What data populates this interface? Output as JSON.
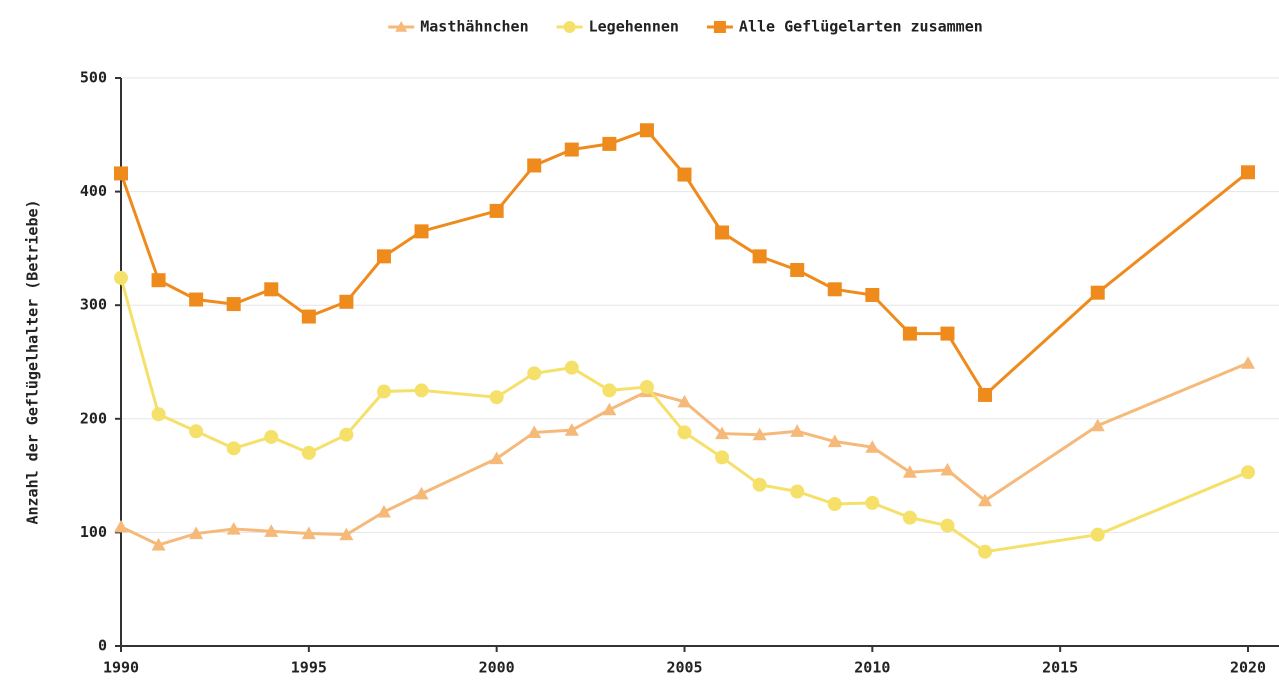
{
  "chart_data": {
    "type": "line",
    "y_label": "Anzahl der Geflügelhalter (Betriebe)",
    "x": [
      1990,
      1991,
      1992,
      1993,
      1994,
      1995,
      1996,
      1997,
      1998,
      2000,
      2001,
      2002,
      2003,
      2004,
      2005,
      2006,
      2007,
      2008,
      2009,
      2010,
      2011,
      2012,
      2013,
      2016,
      2020
    ],
    "series": [
      {
        "name": "Masthähnchen",
        "color": "#f5b97a",
        "marker": "triangle",
        "values": [
          105,
          89,
          99,
          103,
          101,
          99,
          98,
          118,
          134,
          165,
          188,
          190,
          208,
          224,
          215,
          187,
          186,
          189,
          180,
          175,
          153,
          155,
          128,
          194,
          249
        ]
      },
      {
        "name": "Legehennen",
        "color": "#f5e06a",
        "marker": "circle",
        "values": [
          324,
          204,
          189,
          174,
          184,
          170,
          186,
          224,
          225,
          219,
          240,
          245,
          225,
          228,
          188,
          166,
          142,
          136,
          125,
          126,
          113,
          106,
          83,
          98,
          153
        ]
      },
      {
        "name": "Alle Geflügelarten zusammen",
        "color": "#ee8b1c",
        "marker": "square",
        "values": [
          416,
          322,
          305,
          301,
          314,
          290,
          303,
          343,
          365,
          383,
          423,
          437,
          442,
          454,
          415,
          364,
          343,
          331,
          314,
          309,
          275,
          275,
          221,
          311,
          417
        ]
      }
    ],
    "xlim": [
      1990,
      2020
    ],
    "xticks": [
      1990,
      1995,
      2000,
      2005,
      2010,
      2015,
      2020
    ],
    "ylim": [
      0,
      500
    ],
    "yticks": [
      0,
      100,
      200,
      300,
      400,
      500
    ],
    "grid": true,
    "legend": "top"
  }
}
